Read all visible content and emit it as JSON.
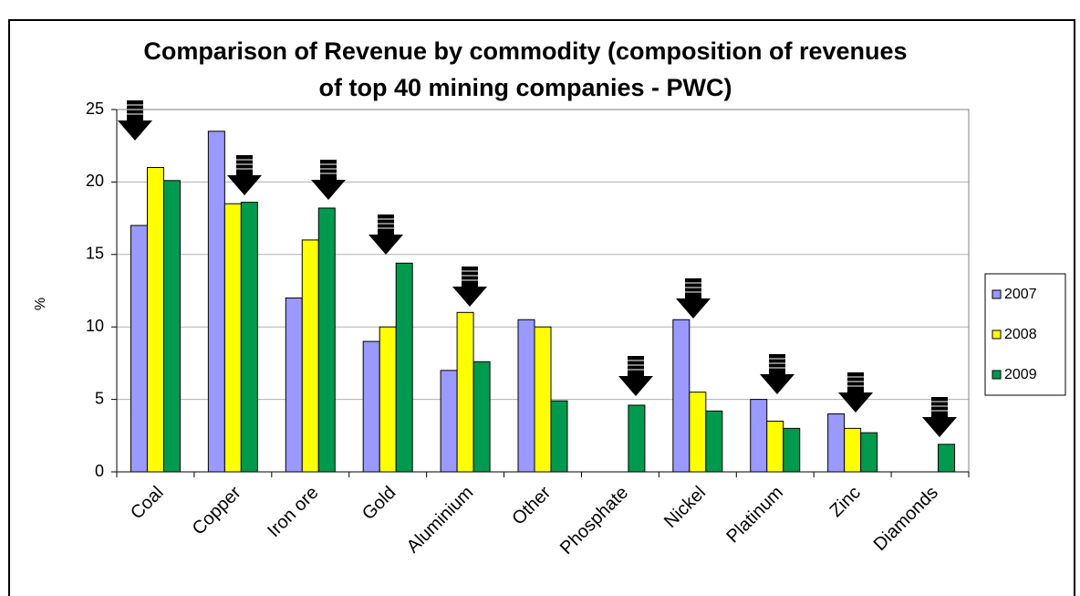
{
  "chart_data": {
    "type": "bar",
    "title": "Comparison of Revenue by commodity (composition of revenues of top 40 mining companies - PWC)",
    "y_label": "%",
    "categories": [
      "Coal",
      "Copper",
      "Iron ore",
      "Gold",
      "Aluminium",
      "Other",
      "Phosphate",
      "Nickel",
      "Platinum",
      "Zinc",
      "Diamonds"
    ],
    "series": [
      {
        "name": "2007",
        "color": "#9999ff",
        "values": [
          17,
          23.5,
          12,
          9,
          7,
          10.5,
          null,
          10.5,
          5,
          4,
          null
        ]
      },
      {
        "name": "2008",
        "color": "#ffff00",
        "values": [
          21,
          18.5,
          16,
          10,
          11,
          10,
          null,
          5.5,
          3.5,
          3,
          null
        ]
      },
      {
        "name": "2009",
        "color": "#009a4e",
        "values": [
          20.1,
          18.6,
          18.2,
          14.4,
          7.6,
          4.9,
          4.6,
          4.2,
          3.0,
          2.7,
          1.9
        ]
      }
    ],
    "ylim": [
      0,
      25
    ],
    "yticks": [
      0,
      5,
      10,
      15,
      20,
      25
    ],
    "grid": true,
    "legend": "right"
  }
}
